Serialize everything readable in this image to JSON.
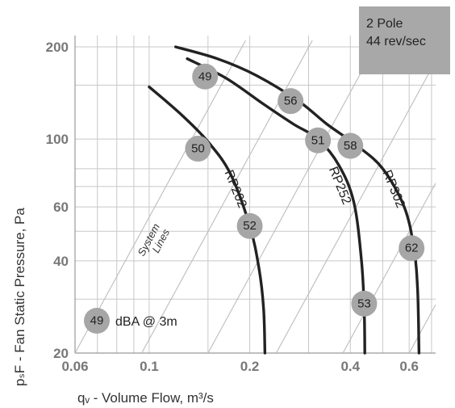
{
  "chart_data": {
    "type": "line",
    "title": "",
    "xlabel": "qᵥ - Volume Flow, m³/s",
    "ylabel": "pₛF - Fan Static Pressure, Pa",
    "xscale": "log",
    "yscale": "log",
    "xlim": [
      0.06,
      0.72
    ],
    "ylim": [
      20,
      210
    ],
    "x_ticks": [
      0.06,
      0.1,
      0.2,
      0.4,
      0.6
    ],
    "x_tick_labels": [
      "0.06",
      "0.1",
      "0.2",
      "0.4",
      "0.6"
    ],
    "y_ticks": [
      20,
      40,
      60,
      100,
      200
    ],
    "y_tick_labels": [
      "20",
      "40",
      "60",
      "100",
      "200"
    ],
    "grid": true,
    "box_label": [
      "2 Pole",
      "44 rev/sec"
    ],
    "box_color": "#a8a8a8",
    "series": [
      {
        "name": "RP202",
        "points": [
          [
            0.1,
            148
          ],
          [
            0.125,
            120
          ],
          [
            0.15,
            98
          ],
          [
            0.175,
            77
          ],
          [
            0.2,
            52
          ],
          [
            0.213,
            38
          ],
          [
            0.22,
            28
          ],
          [
            0.222,
            20
          ]
        ],
        "label_at": [
          0.168,
          78
        ]
      },
      {
        "name": "RP252",
        "points": [
          [
            0.13,
            183
          ],
          [
            0.17,
            158
          ],
          [
            0.22,
            130
          ],
          [
            0.27,
            112
          ],
          [
            0.32,
            100
          ],
          [
            0.37,
            82
          ],
          [
            0.41,
            62
          ],
          [
            0.432,
            40
          ],
          [
            0.44,
            28
          ],
          [
            0.442,
            20
          ]
        ],
        "label_at": [
          0.345,
          80
        ]
      },
      {
        "name": "RP302",
        "points": [
          [
            0.12,
            200
          ],
          [
            0.16,
            183
          ],
          [
            0.21,
            161
          ],
          [
            0.28,
            133
          ],
          [
            0.34,
            112
          ],
          [
            0.42,
            95
          ],
          [
            0.5,
            80
          ],
          [
            0.58,
            60
          ],
          [
            0.62,
            44
          ],
          [
            0.636,
            32
          ],
          [
            0.642,
            20
          ]
        ],
        "label_at": [
          0.5,
          78
        ]
      }
    ],
    "dba_markers": [
      {
        "label": "49",
        "x": 0.147,
        "y": 160
      },
      {
        "label": "56",
        "x": 0.265,
        "y": 133
      },
      {
        "label": "51",
        "x": 0.32,
        "y": 99
      },
      {
        "label": "58",
        "x": 0.4,
        "y": 95
      },
      {
        "label": "50",
        "x": 0.14,
        "y": 93
      },
      {
        "label": "52",
        "x": 0.2,
        "y": 52
      },
      {
        "label": "62",
        "x": 0.61,
        "y": 44
      },
      {
        "label": "53",
        "x": 0.44,
        "y": 29
      }
    ],
    "system_lines_label": [
      "System",
      "Lines"
    ],
    "legend_marker": {
      "label": "49",
      "text": "dBA @ 3m"
    },
    "colors": {
      "curve": "#222222",
      "marker_fill": "#a6a6a6",
      "grid": "#c8c8c8",
      "system_line": "#bdbdbd",
      "tick_text": "#777777"
    }
  }
}
